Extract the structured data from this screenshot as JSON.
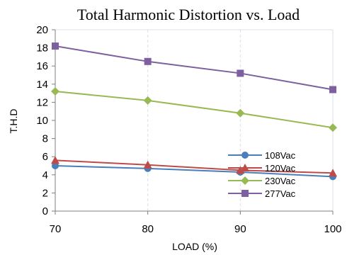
{
  "chart_data": {
    "type": "line",
    "title": "Total Harmonic Distortion vs. Load",
    "xlabel": "LOAD (%)",
    "ylabel": "T.H.D",
    "x": [
      70,
      80,
      90,
      100
    ],
    "xlim": [
      70,
      100
    ],
    "ylim": [
      0,
      20
    ],
    "x_ticks": [
      70,
      80,
      90,
      100
    ],
    "y_ticks": [
      0,
      2,
      4,
      6,
      8,
      10,
      12,
      14,
      16,
      18,
      20
    ],
    "grid": true,
    "legend_position": "bottom-right",
    "series": [
      {
        "name": "108Vac",
        "values": [
          5.0,
          4.7,
          4.3,
          3.8
        ],
        "color": "#4a7ebb",
        "marker": "circle"
      },
      {
        "name": "120Vac",
        "values": [
          5.6,
          5.1,
          4.5,
          4.2
        ],
        "color": "#be4b48",
        "marker": "triangle"
      },
      {
        "name": "230Vac",
        "values": [
          13.2,
          12.2,
          10.8,
          9.2
        ],
        "color": "#98b954",
        "marker": "diamond"
      },
      {
        "name": "277Vac",
        "values": [
          18.2,
          16.5,
          15.2,
          13.4
        ],
        "color": "#7d60a0",
        "marker": "square"
      }
    ]
  }
}
